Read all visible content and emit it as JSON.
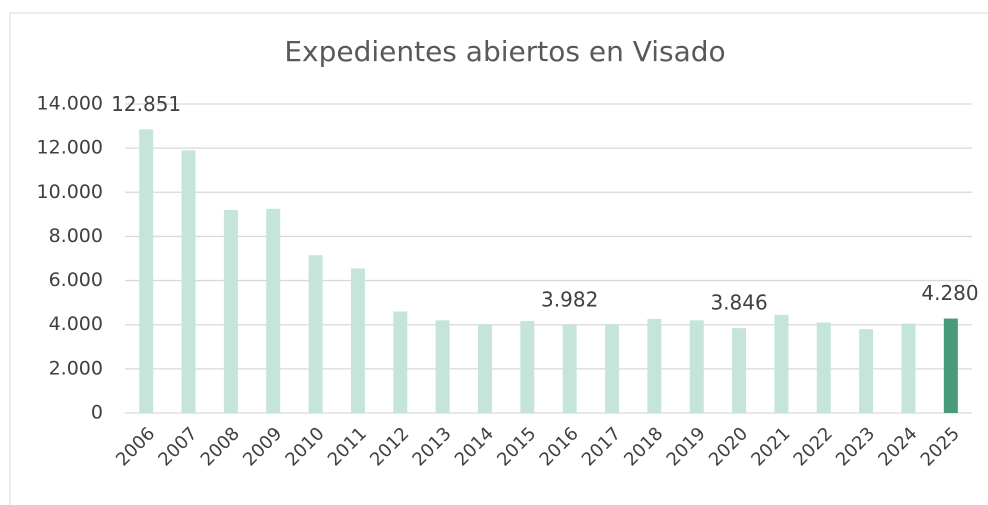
{
  "chart_data": {
    "type": "bar",
    "title": "Expedientes abiertos en Visado",
    "categories": [
      "2006",
      "2007",
      "2008",
      "2009",
      "2010",
      "2011",
      "2012",
      "2013",
      "2014",
      "2015",
      "2016",
      "2017",
      "2018",
      "2019",
      "2020",
      "2021",
      "2022",
      "2023",
      "2024",
      "2025"
    ],
    "values": [
      12851,
      11900,
      9200,
      9250,
      7150,
      6550,
      4600,
      4200,
      4000,
      4170,
      3982,
      4000,
      4260,
      4200,
      3846,
      4450,
      4100,
      3800,
      4050,
      4280
    ],
    "value_labels": [
      "12.851",
      null,
      null,
      null,
      null,
      null,
      null,
      null,
      null,
      null,
      "3.982",
      null,
      null,
      null,
      "3.846",
      null,
      null,
      null,
      null,
      "4.280"
    ],
    "colors": [
      "#c5e5d9",
      "#c5e5d9",
      "#c5e5d9",
      "#c5e5d9",
      "#c5e5d9",
      "#c5e5d9",
      "#c5e5d9",
      "#c5e5d9",
      "#c5e5d9",
      "#c5e5d9",
      "#c5e5d9",
      "#c5e5d9",
      "#c5e5d9",
      "#c5e5d9",
      "#c5e5d9",
      "#c5e5d9",
      "#c5e5d9",
      "#c5e5d9",
      "#c5e5d9",
      "#4a9a7c"
    ],
    "ylim": [
      0,
      14000
    ],
    "yticks": [
      0,
      {
        "value": 2000,
        "label": "2.000"
      },
      {
        "value": 4000,
        "label": "4.000"
      },
      {
        "value": 6000,
        "label": "6.000"
      },
      {
        "value": 8000,
        "label": "8.000"
      },
      {
        "value": 10000,
        "label": "10.000"
      },
      {
        "value": 12000,
        "label": "12.000"
      },
      {
        "value": 14000,
        "label": "14.000"
      }
    ],
    "grid": true
  }
}
